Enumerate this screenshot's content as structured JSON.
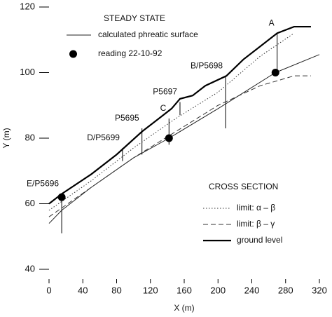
{
  "chart_data": {
    "type": "line",
    "xlabel": "X (m)",
    "ylabel": "Y (m)",
    "xlim": [
      0,
      320
    ],
    "ylim": [
      40,
      120
    ],
    "xticks": [
      0,
      40,
      80,
      120,
      160,
      200,
      240,
      280,
      320
    ],
    "yticks": [
      40,
      60,
      80,
      100,
      120
    ],
    "legend_top_title": "STEADY STATE",
    "legend_bottom_title": "CROSS SECTION",
    "series": [
      {
        "name": "calculated phreatic surface",
        "legend": "top",
        "style": "solid",
        "width": 1,
        "color": "#222",
        "x": [
          0,
          15,
          50,
          100,
          142,
          200,
          268,
          320
        ],
        "y": [
          54,
          58,
          65,
          74,
          80,
          89,
          100,
          105.5
        ]
      },
      {
        "name": "limit: α – β",
        "legend": "bottom",
        "style": "dotted",
        "width": 1,
        "color": "#333",
        "x": [
          0,
          50,
          100,
          150,
          200,
          250,
          290
        ],
        "y": [
          58,
          67,
          77,
          86,
          94,
          105,
          112
        ]
      },
      {
        "name": "limit: β – γ",
        "legend": "bottom",
        "style": "dashed",
        "width": 1,
        "color": "#333",
        "x": [
          0,
          50,
          100,
          150,
          200,
          250,
          290,
          310
        ],
        "y": [
          56,
          65,
          74,
          82,
          90,
          96,
          99,
          99
        ]
      },
      {
        "name": "ground level",
        "legend": "bottom",
        "style": "solid",
        "width": 2.2,
        "color": "#000",
        "x": [
          0,
          15,
          50,
          80,
          110,
          130,
          145,
          155,
          170,
          185,
          210,
          230,
          250,
          270,
          290,
          310
        ],
        "y": [
          60,
          63,
          69,
          75,
          82,
          86,
          89,
          92,
          93,
          96,
          99,
          104,
          108,
          112,
          114,
          114
        ]
      }
    ],
    "readings": {
      "name": "reading 22-10-92",
      "legend": "top",
      "color": "#000",
      "x": [
        15,
        142,
        268
      ],
      "y": [
        62,
        80,
        100
      ]
    },
    "boreholes": [
      {
        "label": "E/P5696",
        "x": 15,
        "bottom": 51,
        "top": 63
      },
      {
        "label": "D/P5699",
        "x": 87,
        "bottom": 73,
        "top": 77
      },
      {
        "label": "P5695",
        "x": 110,
        "bottom": 75,
        "top": 83
      },
      {
        "label": "C",
        "x": 142,
        "bottom": 78,
        "top": 86
      },
      {
        "label": "P5697",
        "x": 155,
        "bottom": 87,
        "top": 91
      },
      {
        "label": "B/P5698",
        "x": 209,
        "bottom": 83,
        "top": 99
      },
      {
        "label": "A",
        "x": 270,
        "bottom": 100,
        "top": 112
      }
    ]
  }
}
